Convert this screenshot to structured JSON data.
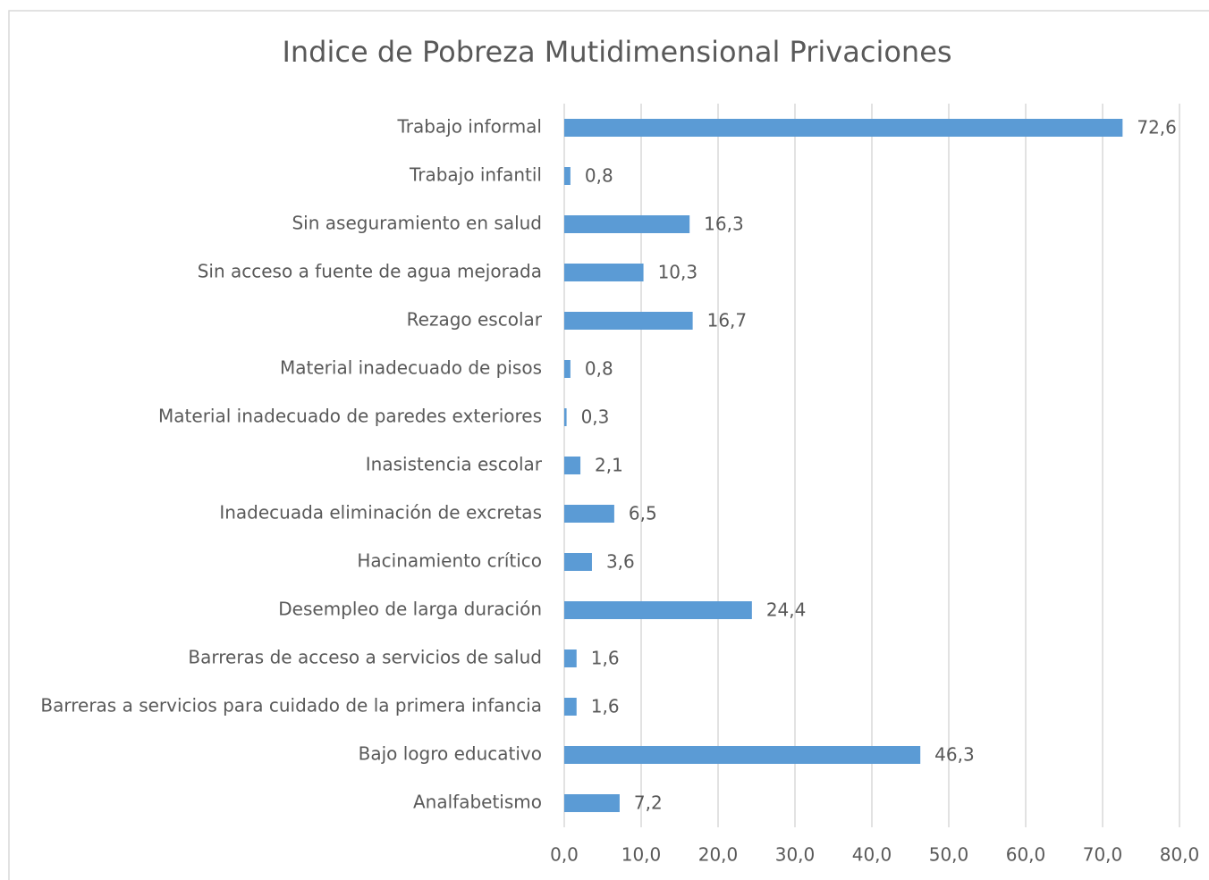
{
  "chart_data": {
    "type": "barh",
    "title": "Indice de Pobreza Mutidimensional Privaciones",
    "categories": [
      "Trabajo informal",
      "Trabajo infantil",
      "Sin aseguramiento en salud",
      "Sin acceso a fuente de agua mejorada",
      "Rezago escolar",
      "Material inadecuado de pisos",
      "Material inadecuado de paredes exteriores",
      "Inasistencia escolar",
      "Inadecuada eliminación de excretas",
      "Hacinamiento crítico",
      "Desempleo de larga duración",
      "Barreras de acceso a servicios de salud",
      "Barreras a servicios para cuidado de la primera infancia",
      "Bajo logro educativo",
      "Analfabetismo"
    ],
    "values": [
      72.6,
      0.8,
      16.3,
      10.3,
      16.7,
      0.8,
      0.3,
      2.1,
      6.5,
      3.6,
      24.4,
      1.6,
      1.6,
      46.3,
      7.2
    ],
    "value_labels": [
      "72,6",
      "0,8",
      "16,3",
      "10,3",
      "16,7",
      "0,8",
      "0,3",
      "2,1",
      "6,5",
      "3,6",
      "24,4",
      "1,6",
      "1,6",
      "46,3",
      "7,2"
    ],
    "color": "#5b9bd5",
    "xlim": [
      0,
      80
    ],
    "xticks": [
      {
        "value": 0,
        "label": "0,0"
      },
      {
        "value": 10,
        "label": "10,0"
      },
      {
        "value": 20,
        "label": "20,0"
      },
      {
        "value": 30,
        "label": "30,0"
      },
      {
        "value": 40,
        "label": "40,0"
      },
      {
        "value": 50,
        "label": "50,0"
      },
      {
        "value": 60,
        "label": "60,0"
      },
      {
        "value": 70,
        "label": "70,0"
      },
      {
        "value": 80,
        "label": "80,0"
      }
    ],
    "grid": true
  }
}
